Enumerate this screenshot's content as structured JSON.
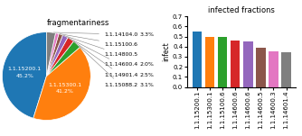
{
  "chart_data": [
    {
      "type": "pie",
      "title": "fragmentariness",
      "categories": [
        "1.1.15200.1",
        "1.1.15300.1",
        "1.1.15088.2",
        "1.1.14901.4",
        "1.1.14600.4",
        "1.1.14800.5",
        "1.1.15100.6",
        "1.1.14104.0"
      ],
      "values": [
        45.2,
        41.2,
        3.1,
        2.5,
        2.0,
        1.5,
        1.2,
        3.3
      ],
      "value_labels": [
        "45.2%",
        "41.2%",
        "3.1%",
        "2.5%",
        "2.0%",
        null,
        null,
        "3.3%"
      ],
      "data_labels": true,
      "colors": [
        "#1f77b4",
        "#ff7f0e",
        "#2ca02c",
        "#d62728",
        "#9467bd",
        "#8c564b",
        "#e377c2",
        "#7f7f7f"
      ]
    },
    {
      "type": "bar",
      "title": "infected fractions",
      "categories": [
        "1.1.15200.1",
        "1.1.15300.1",
        "1.1.15100.6",
        "1.1.14600.6",
        "1.1.14600.6",
        "1.1.14600.5",
        "1.1.14600.3",
        "1.1.14601.4"
      ],
      "values": [
        0.55,
        0.5,
        0.495,
        0.46,
        0.455,
        0.385,
        0.355,
        0.345
      ],
      "colors": [
        "#1f77b4",
        "#ff7f0e",
        "#2ca02c",
        "#d62728",
        "#9467bd",
        "#8c564b",
        "#e377c2",
        "#7f7f7f"
      ],
      "ylabel": "infect",
      "ylim": [
        0.0,
        0.7
      ],
      "yticks": [
        0.0,
        0.1,
        0.2,
        0.3,
        0.4,
        0.5,
        0.6,
        0.7
      ]
    }
  ]
}
